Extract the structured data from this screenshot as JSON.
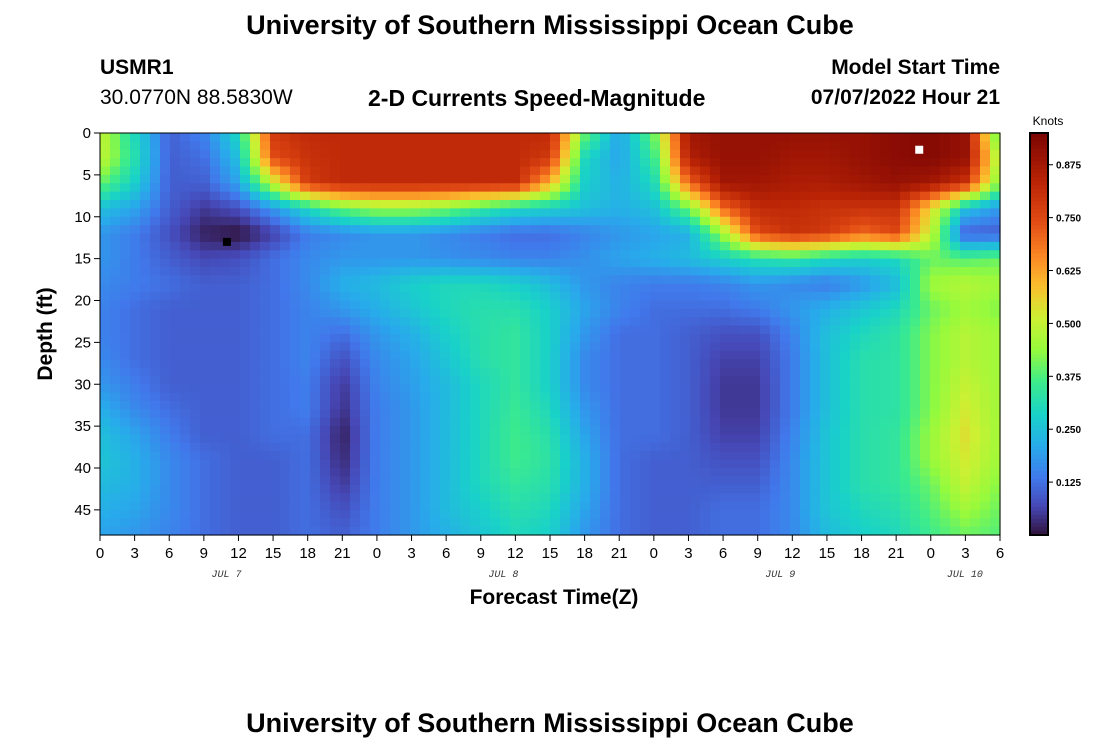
{
  "page": {
    "title": "University of Southern Mississippi Ocean Cube",
    "station_name": "USMR1",
    "station_coords": "30.0770N  88.5830W",
    "plot_title": "2-D Currents Speed-Magnitude",
    "model_start_label": "Model Start Time",
    "model_start_value": "07/07/2022 Hour 21",
    "bottom_title": "University of Southern Mississippi Ocean Cube"
  },
  "chart_data": {
    "type": "heatmap",
    "title": "2-D Currents Speed-Magnitude",
    "xlabel": "Forecast Time(Z)",
    "ylabel": "Depth (ft)",
    "x_start_hour": 0,
    "x_end_hour": 78,
    "x_ticks": [
      {
        "hour": 0,
        "label": "0"
      },
      {
        "hour": 3,
        "label": "3"
      },
      {
        "hour": 6,
        "label": "6"
      },
      {
        "hour": 9,
        "label": "9"
      },
      {
        "hour": 12,
        "label": "12"
      },
      {
        "hour": 15,
        "label": "15"
      },
      {
        "hour": 18,
        "label": "18"
      },
      {
        "hour": 21,
        "label": "21"
      },
      {
        "hour": 24,
        "label": "0"
      },
      {
        "hour": 27,
        "label": "3"
      },
      {
        "hour": 30,
        "label": "6"
      },
      {
        "hour": 33,
        "label": "9"
      },
      {
        "hour": 36,
        "label": "12"
      },
      {
        "hour": 39,
        "label": "15"
      },
      {
        "hour": 42,
        "label": "18"
      },
      {
        "hour": 45,
        "label": "21"
      },
      {
        "hour": 48,
        "label": "0"
      },
      {
        "hour": 51,
        "label": "3"
      },
      {
        "hour": 54,
        "label": "6"
      },
      {
        "hour": 57,
        "label": "9"
      },
      {
        "hour": 60,
        "label": "12"
      },
      {
        "hour": 63,
        "label": "15"
      },
      {
        "hour": 66,
        "label": "18"
      },
      {
        "hour": 69,
        "label": "21"
      },
      {
        "hour": 72,
        "label": "0"
      },
      {
        "hour": 75,
        "label": "3"
      },
      {
        "hour": 78,
        "label": "6"
      }
    ],
    "day_labels": [
      {
        "hour": 12,
        "label": "JUL 7"
      },
      {
        "hour": 36,
        "label": "JUL 8"
      },
      {
        "hour": 60,
        "label": "JUL 9"
      },
      {
        "hour": 76,
        "label": "JUL 10"
      }
    ],
    "y_ticks": [
      0,
      5,
      10,
      15,
      20,
      25,
      30,
      35,
      40,
      45
    ],
    "ylim": [
      0,
      48
    ],
    "y_inverted": true,
    "colorbar": {
      "unit": "Knots",
      "range": [
        0,
        0.95
      ],
      "tick_values": [
        0.125,
        0.25,
        0.375,
        0.5,
        0.625,
        0.75,
        0.875
      ],
      "tick_labels": [
        "0.125",
        "0.250",
        "0.375",
        "0.500",
        "0.625",
        "0.750",
        "0.875"
      ]
    },
    "time_hours": [
      0,
      3,
      6,
      9,
      12,
      15,
      18,
      21,
      24,
      27,
      30,
      33,
      36,
      39,
      42,
      45,
      48,
      51,
      54,
      57,
      60,
      63,
      66,
      69,
      72,
      75,
      78
    ],
    "depth_ft": [
      0,
      3,
      6,
      9,
      12,
      15,
      18,
      21,
      24,
      27,
      30,
      33,
      36,
      39,
      42,
      45,
      48
    ],
    "speed_knots": [
      [
        0.5,
        0.3,
        0.1,
        0.15,
        0.3,
        0.78,
        0.82,
        0.82,
        0.82,
        0.82,
        0.82,
        0.82,
        0.82,
        0.82,
        0.4,
        0.2,
        0.4,
        0.88,
        0.9,
        0.9,
        0.9,
        0.9,
        0.9,
        0.92,
        0.93,
        0.9,
        0.35
      ],
      [
        0.5,
        0.32,
        0.1,
        0.12,
        0.25,
        0.74,
        0.8,
        0.82,
        0.82,
        0.82,
        0.82,
        0.82,
        0.82,
        0.78,
        0.3,
        0.2,
        0.35,
        0.85,
        0.9,
        0.9,
        0.88,
        0.88,
        0.9,
        0.92,
        0.93,
        0.9,
        0.45
      ],
      [
        0.4,
        0.28,
        0.1,
        0.1,
        0.2,
        0.5,
        0.78,
        0.82,
        0.82,
        0.82,
        0.82,
        0.82,
        0.82,
        0.6,
        0.28,
        0.22,
        0.3,
        0.7,
        0.88,
        0.88,
        0.86,
        0.86,
        0.88,
        0.9,
        0.88,
        0.8,
        0.4
      ],
      [
        0.25,
        0.2,
        0.1,
        0.05,
        0.08,
        0.18,
        0.3,
        0.4,
        0.45,
        0.45,
        0.42,
        0.35,
        0.3,
        0.28,
        0.25,
        0.22,
        0.25,
        0.4,
        0.7,
        0.82,
        0.82,
        0.8,
        0.8,
        0.8,
        0.55,
        0.25,
        0.18
      ],
      [
        0.18,
        0.14,
        0.08,
        0.02,
        0.0,
        0.06,
        0.14,
        0.16,
        0.18,
        0.18,
        0.16,
        0.14,
        0.12,
        0.12,
        0.15,
        0.18,
        0.2,
        0.22,
        0.45,
        0.75,
        0.8,
        0.78,
        0.7,
        0.75,
        0.5,
        0.1,
        0.1
      ],
      [
        0.18,
        0.14,
        0.1,
        0.07,
        0.08,
        0.12,
        0.16,
        0.18,
        0.18,
        0.18,
        0.17,
        0.16,
        0.15,
        0.15,
        0.17,
        0.2,
        0.22,
        0.24,
        0.28,
        0.32,
        0.34,
        0.3,
        0.28,
        0.3,
        0.4,
        0.38,
        0.4
      ],
      [
        0.16,
        0.14,
        0.12,
        0.1,
        0.1,
        0.12,
        0.16,
        0.22,
        0.24,
        0.28,
        0.3,
        0.3,
        0.28,
        0.24,
        0.18,
        0.15,
        0.14,
        0.14,
        0.15,
        0.18,
        0.16,
        0.14,
        0.18,
        0.24,
        0.45,
        0.48,
        0.45
      ],
      [
        0.15,
        0.12,
        0.1,
        0.1,
        0.1,
        0.12,
        0.15,
        0.18,
        0.22,
        0.26,
        0.3,
        0.32,
        0.32,
        0.28,
        0.2,
        0.15,
        0.12,
        0.12,
        0.12,
        0.14,
        0.18,
        0.22,
        0.26,
        0.3,
        0.4,
        0.45,
        0.42
      ],
      [
        0.15,
        0.12,
        0.1,
        0.1,
        0.1,
        0.12,
        0.15,
        0.12,
        0.18,
        0.22,
        0.28,
        0.32,
        0.34,
        0.28,
        0.18,
        0.12,
        0.12,
        0.1,
        0.08,
        0.08,
        0.15,
        0.25,
        0.3,
        0.33,
        0.42,
        0.48,
        0.45
      ],
      [
        0.16,
        0.12,
        0.1,
        0.1,
        0.1,
        0.12,
        0.15,
        0.08,
        0.16,
        0.2,
        0.26,
        0.32,
        0.34,
        0.28,
        0.16,
        0.12,
        0.12,
        0.1,
        0.06,
        0.06,
        0.14,
        0.25,
        0.32,
        0.33,
        0.42,
        0.48,
        0.45
      ],
      [
        0.18,
        0.14,
        0.1,
        0.1,
        0.1,
        0.12,
        0.14,
        0.05,
        0.15,
        0.19,
        0.24,
        0.3,
        0.34,
        0.28,
        0.16,
        0.12,
        0.12,
        0.1,
        0.05,
        0.05,
        0.14,
        0.25,
        0.32,
        0.33,
        0.42,
        0.5,
        0.45
      ],
      [
        0.22,
        0.16,
        0.12,
        0.1,
        0.1,
        0.12,
        0.14,
        0.04,
        0.14,
        0.18,
        0.24,
        0.3,
        0.35,
        0.3,
        0.18,
        0.12,
        0.12,
        0.1,
        0.05,
        0.05,
        0.14,
        0.25,
        0.32,
        0.33,
        0.42,
        0.52,
        0.45
      ],
      [
        0.25,
        0.2,
        0.14,
        0.1,
        0.1,
        0.12,
        0.12,
        0.02,
        0.14,
        0.18,
        0.24,
        0.3,
        0.36,
        0.32,
        0.2,
        0.12,
        0.12,
        0.1,
        0.06,
        0.06,
        0.15,
        0.26,
        0.32,
        0.34,
        0.44,
        0.54,
        0.45
      ],
      [
        0.26,
        0.22,
        0.16,
        0.12,
        0.1,
        0.1,
        0.12,
        0.03,
        0.14,
        0.18,
        0.24,
        0.3,
        0.36,
        0.33,
        0.22,
        0.12,
        0.1,
        0.1,
        0.08,
        0.08,
        0.16,
        0.26,
        0.32,
        0.34,
        0.44,
        0.52,
        0.45
      ],
      [
        0.24,
        0.22,
        0.16,
        0.12,
        0.1,
        0.1,
        0.12,
        0.05,
        0.14,
        0.18,
        0.24,
        0.3,
        0.34,
        0.32,
        0.22,
        0.12,
        0.1,
        0.1,
        0.1,
        0.1,
        0.16,
        0.26,
        0.32,
        0.34,
        0.4,
        0.5,
        0.42
      ],
      [
        0.22,
        0.2,
        0.16,
        0.12,
        0.1,
        0.1,
        0.12,
        0.08,
        0.14,
        0.18,
        0.24,
        0.28,
        0.32,
        0.3,
        0.2,
        0.12,
        0.1,
        0.1,
        0.12,
        0.12,
        0.16,
        0.26,
        0.3,
        0.32,
        0.38,
        0.45,
        0.4
      ],
      [
        0.2,
        0.18,
        0.15,
        0.12,
        0.1,
        0.1,
        0.12,
        0.1,
        0.14,
        0.18,
        0.22,
        0.26,
        0.3,
        0.28,
        0.18,
        0.12,
        0.1,
        0.1,
        0.12,
        0.12,
        0.16,
        0.24,
        0.28,
        0.3,
        0.36,
        0.4,
        0.38
      ]
    ],
    "markers": [
      {
        "hour": 11,
        "depth": 13,
        "color": "#000000"
      },
      {
        "hour": 71,
        "depth": 2,
        "color": "#ffffff"
      }
    ]
  }
}
